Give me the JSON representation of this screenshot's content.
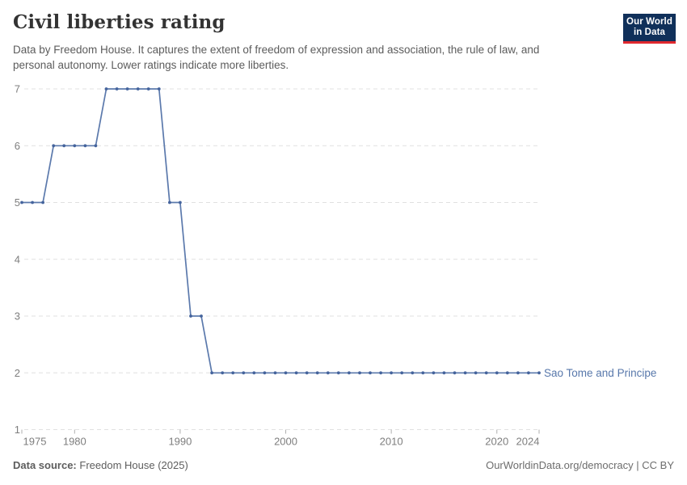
{
  "header": {
    "title": "Civil liberties rating",
    "subtitle_line1": "Data by Freedom House. It captures the extent of freedom of expression and association, the rule of law, and",
    "subtitle_line2": "personal autonomy. Lower ratings indicate more liberties.",
    "logo": {
      "line1": "Our World",
      "line2": "in Data"
    }
  },
  "chart_data": {
    "type": "line",
    "title": "Civil liberties rating",
    "xlabel": "",
    "ylabel": "",
    "xlim": [
      1975,
      2024
    ],
    "ylim": [
      1,
      7
    ],
    "x_ticks": [
      1975,
      1980,
      1990,
      2000,
      2010,
      2020,
      2024
    ],
    "y_ticks": [
      1,
      2,
      3,
      4,
      5,
      6,
      7
    ],
    "grid": "horizontal-dashed",
    "legend_position": "end-of-line-label",
    "series": [
      {
        "name": "Sao Tome and Principe",
        "color": "#5b79ac",
        "marker_color": "#44639c",
        "label_color": "#5878ab",
        "years": [
          1975,
          1976,
          1977,
          1978,
          1979,
          1980,
          1981,
          1982,
          1983,
          1984,
          1985,
          1986,
          1987,
          1988,
          1989,
          1990,
          1991,
          1992,
          1993,
          1994,
          1995,
          1996,
          1997,
          1998,
          1999,
          2000,
          2001,
          2002,
          2003,
          2004,
          2005,
          2006,
          2007,
          2008,
          2009,
          2010,
          2011,
          2012,
          2013,
          2014,
          2015,
          2016,
          2017,
          2018,
          2019,
          2020,
          2021,
          2022,
          2023,
          2024
        ],
        "values": [
          5,
          5,
          5,
          6,
          6,
          6,
          6,
          6,
          7,
          7,
          7,
          7,
          7,
          7,
          5,
          5,
          3,
          3,
          2,
          2,
          2,
          2,
          2,
          2,
          2,
          2,
          2,
          2,
          2,
          2,
          2,
          2,
          2,
          2,
          2,
          2,
          2,
          2,
          2,
          2,
          2,
          2,
          2,
          2,
          2,
          2,
          2,
          2,
          2,
          2
        ]
      }
    ],
    "style": {
      "gridline_color": "#e0e0e0",
      "tick_mark_color": "#afafaf",
      "axis_label_color": "#7e7e7e"
    }
  },
  "footer": {
    "source_label": "Data source:",
    "source_value": "Freedom House (2025)",
    "right_link": "OurWorldinData.org/democracy",
    "separator": " | ",
    "license": "CC BY"
  }
}
